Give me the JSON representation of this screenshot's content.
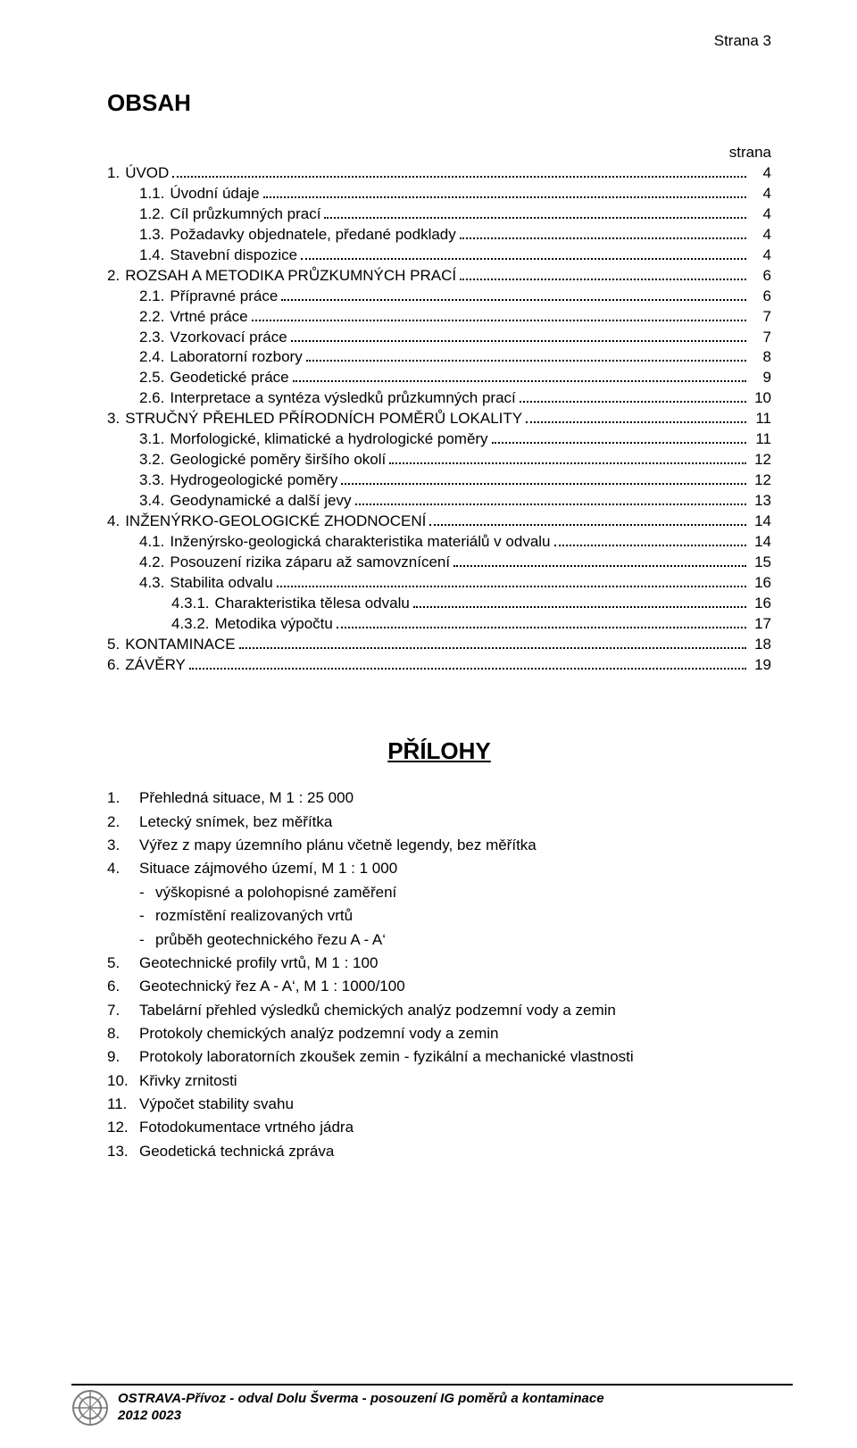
{
  "header": {
    "page_label": "Strana 3"
  },
  "title": "OBSAH",
  "strana_label": "strana",
  "toc": [
    {
      "lvl": 1,
      "num": "1.",
      "txt": "ÚVOD",
      "pg": "4"
    },
    {
      "lvl": 2,
      "num": "1.1.",
      "txt": "Úvodní údaje",
      "pg": "4"
    },
    {
      "lvl": 2,
      "num": "1.2.",
      "txt": "Cíl průzkumných prací",
      "pg": "4"
    },
    {
      "lvl": 2,
      "num": "1.3.",
      "txt": "Požadavky objednatele, předané podklady",
      "pg": "4"
    },
    {
      "lvl": 2,
      "num": "1.4.",
      "txt": "Stavební dispozice",
      "pg": "4"
    },
    {
      "lvl": 1,
      "num": "2.",
      "txt": "ROZSAH A METODIKA PRŮZKUMNÝCH PRACÍ",
      "pg": "6"
    },
    {
      "lvl": 2,
      "num": "2.1.",
      "txt": "Přípravné práce",
      "pg": "6"
    },
    {
      "lvl": 2,
      "num": "2.2.",
      "txt": "Vrtné práce",
      "pg": "7"
    },
    {
      "lvl": 2,
      "num": "2.3.",
      "txt": "Vzorkovací práce",
      "pg": "7"
    },
    {
      "lvl": 2,
      "num": "2.4.",
      "txt": "Laboratorní rozbory",
      "pg": "8"
    },
    {
      "lvl": 2,
      "num": "2.5.",
      "txt": "Geodetické práce",
      "pg": "9"
    },
    {
      "lvl": 2,
      "num": "2.6.",
      "txt": "Interpretace a syntéza výsledků průzkumných prací",
      "pg": "10"
    },
    {
      "lvl": 1,
      "num": "3.",
      "txt": "STRUČNÝ PŘEHLED PŘÍRODNÍCH POMĚRŮ LOKALITY",
      "pg": "11"
    },
    {
      "lvl": 2,
      "num": "3.1.",
      "txt": "Morfologické, klimatické a hydrologické poměry",
      "pg": "11"
    },
    {
      "lvl": 2,
      "num": "3.2.",
      "txt": "Geologické poměry širšího okolí",
      "pg": "12"
    },
    {
      "lvl": 2,
      "num": "3.3.",
      "txt": "Hydrogeologické poměry",
      "pg": "12"
    },
    {
      "lvl": 2,
      "num": "3.4.",
      "txt": "Geodynamické a další jevy",
      "pg": "13"
    },
    {
      "lvl": 1,
      "num": "4.",
      "txt": "INŽENÝRKO-GEOLOGICKÉ ZHODNOCENÍ",
      "pg": "14"
    },
    {
      "lvl": 2,
      "num": "4.1.",
      "txt": "Inženýrsko-geologická charakteristika materiálů v odvalu",
      "pg": "14"
    },
    {
      "lvl": 2,
      "num": "4.2.",
      "txt": "Posouzení rizika záparu až samovznícení",
      "pg": "15"
    },
    {
      "lvl": 2,
      "num": "4.3.",
      "txt": "Stabilita odvalu",
      "pg": "16"
    },
    {
      "lvl": 3,
      "num": "4.3.1.",
      "txt": "Charakteristika tělesa odvalu",
      "pg": "16"
    },
    {
      "lvl": 3,
      "num": "4.3.2.",
      "txt": "Metodika výpočtu",
      "pg": "17"
    },
    {
      "lvl": 1,
      "num": "5.",
      "txt": "KONTAMINACE",
      "pg": "18"
    },
    {
      "lvl": 1,
      "num": "6.",
      "txt": "ZÁVĚRY",
      "pg": "19"
    }
  ],
  "appendix_title": "PŘÍLOHY",
  "appendix": [
    {
      "num": "1.",
      "txt": "Přehledná situace, M 1 : 25 000"
    },
    {
      "num": "2.",
      "txt": "Letecký snímek, bez měřítka"
    },
    {
      "num": "3.",
      "txt": "Výřez z mapy územního plánu včetně legendy, bez měřítka"
    },
    {
      "num": "4.",
      "txt": "Situace zájmového území, M 1 : 1 000",
      "subs": [
        "výškopisné a polohopisné zaměření",
        "rozmístění realizovaných vrtů",
        "průběh geotechnického řezu A - A‘"
      ]
    },
    {
      "num": "5.",
      "txt": "Geotechnické profily vrtů, M 1 : 100"
    },
    {
      "num": "6.",
      "txt": "Geotechnický řez A - A‘, M 1 : 1000/100"
    },
    {
      "num": "7.",
      "txt": "Tabelární přehled výsledků chemických analýz podzemní vody a zemin"
    },
    {
      "num": "8.",
      "txt": "Protokoly chemických analýz podzemní vody a zemin"
    },
    {
      "num": "9.",
      "txt": "Protokoly laboratorních zkoušek zemin - fyzikální a mechanické vlastnosti"
    },
    {
      "num": "10.",
      "txt": "Křivky zrnitosti"
    },
    {
      "num": "11.",
      "txt": "Výpočet stability svahu"
    },
    {
      "num": "12.",
      "txt": "Fotodokumentace vrtného jádra"
    },
    {
      "num": "13.",
      "txt": "Geodetická technická zpráva"
    }
  ],
  "footer": {
    "line1": "OSTRAVA-Přívoz - odval Dolu Šverma - posouzení IG poměrů a kontaminace",
    "line2": "2012 0023"
  },
  "colors": {
    "text": "#000000",
    "background": "#ffffff",
    "logo_stroke": "#7a7a7a"
  }
}
